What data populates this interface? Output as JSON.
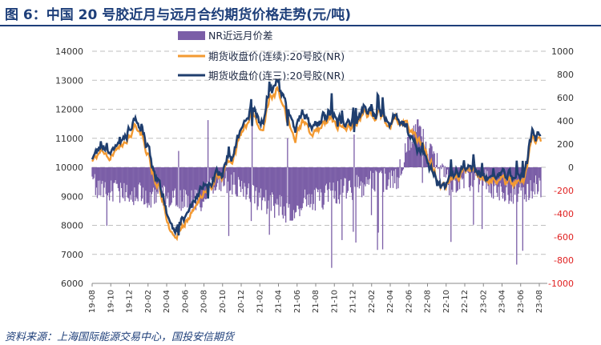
{
  "title": "图 6：中国 20 号胶近月与远月合约期货价格走势(元/吨)",
  "source": "资料来源：上海国际能源交易中心，国投安信期货",
  "chart_data": {
    "type": "line+area",
    "left_axis": {
      "min": 6000,
      "max": 14000,
      "ticks": [
        6000,
        7000,
        8000,
        9000,
        10000,
        11000,
        12000,
        13000,
        14000
      ]
    },
    "right_axis": {
      "min": -1000,
      "max": 1000,
      "ticks": [
        -1000,
        -800,
        -600,
        -400,
        -200,
        0,
        200,
        400,
        600,
        800,
        1000
      ]
    },
    "x_ticks": [
      "19-08",
      "19-10",
      "19-12",
      "20-02",
      "20-04",
      "20-06",
      "20-08",
      "20-10",
      "20-12",
      "21-02",
      "21-04",
      "21-06",
      "21-08",
      "21-10",
      "21-12",
      "22-02",
      "22-04",
      "22-06",
      "22-08",
      "22-10",
      "22-12",
      "23-02",
      "23-04",
      "23-06",
      "23-08"
    ],
    "legend": [
      "NR近远月价差",
      "期货收盘价(连续):20号胶(NR)",
      "期货收盘价(连三):20号胶(NR)"
    ],
    "colors": {
      "spread": "#7b5ea7",
      "continuous": "#f39a32",
      "third": "#1f3e6e",
      "right_axis_text": "#e02020"
    },
    "anchors_near": [
      [
        "19-08",
        10100
      ],
      [
        "19-09",
        10600
      ],
      [
        "19-10",
        10400
      ],
      [
        "19-11",
        10800
      ],
      [
        "19-12",
        11000
      ],
      [
        "19-12b",
        11300
      ],
      [
        "20-01",
        11200
      ],
      [
        "20-02",
        10000
      ],
      [
        "20-03",
        9300
      ],
      [
        "20-04",
        8000
      ],
      [
        "20-04b",
        7700
      ],
      [
        "20-05",
        8200
      ],
      [
        "20-06",
        8700
      ],
      [
        "20-07",
        9100
      ],
      [
        "20-08",
        9300
      ],
      [
        "20-09",
        9600
      ],
      [
        "20-10",
        10000
      ],
      [
        "20-10b",
        10600
      ],
      [
        "20-11",
        11600
      ],
      [
        "20-12",
        11700
      ],
      [
        "21-01",
        11000
      ],
      [
        "21-02",
        12400
      ],
      [
        "21-02b",
        12800
      ],
      [
        "21-03",
        11600
      ],
      [
        "21-04",
        11200
      ],
      [
        "21-05",
        11600
      ],
      [
        "21-06",
        10900
      ],
      [
        "21-07",
        11300
      ],
      [
        "21-08",
        11700
      ],
      [
        "21-09",
        11200
      ],
      [
        "21-10",
        11600
      ],
      [
        "21-11",
        11400
      ],
      [
        "21-12",
        11700
      ],
      [
        "22-01",
        11800
      ],
      [
        "22-02",
        11700
      ],
      [
        "22-03",
        11400
      ],
      [
        "22-04",
        11600
      ],
      [
        "22-05",
        11500
      ],
      [
        "22-06",
        11000
      ],
      [
        "22-07",
        10600
      ],
      [
        "22-08",
        10200
      ],
      [
        "22-09",
        9400
      ],
      [
        "22-10",
        9500
      ],
      [
        "22-11",
        9600
      ],
      [
        "22-12",
        9900
      ],
      [
        "23-01",
        9800
      ],
      [
        "23-02",
        9800
      ],
      [
        "23-03",
        9700
      ],
      [
        "23-04",
        9600
      ],
      [
        "23-05",
        9400
      ],
      [
        "23-06",
        9500
      ],
      [
        "23-07",
        9700
      ],
      [
        "23-08",
        10900
      ],
      [
        "23-09",
        10700
      ]
    ],
    "spread_anchors": [
      [
        "19-08",
        -150
      ],
      [
        "19-10",
        -200
      ],
      [
        "19-12",
        -220
      ],
      [
        "20-02",
        -250
      ],
      [
        "20-04",
        -260
      ],
      [
        "20-06",
        -280
      ],
      [
        "20-08",
        -300
      ],
      [
        "20-10",
        -100
      ],
      [
        "20-12",
        -150
      ],
      [
        "21-02",
        -250
      ],
      [
        "21-04",
        -320
      ],
      [
        "21-06",
        -380
      ],
      [
        "21-08",
        -280
      ],
      [
        "21-10",
        -250
      ],
      [
        "21-12",
        -200
      ],
      [
        "22-02",
        -150
      ],
      [
        "22-04",
        -120
      ],
      [
        "22-06",
        -100
      ],
      [
        "22-07",
        350
      ],
      [
        "22-08",
        80
      ],
      [
        "22-10",
        -180
      ],
      [
        "22-12",
        -100
      ],
      [
        "23-02",
        -120
      ],
      [
        "23-04",
        -250
      ],
      [
        "23-06",
        -200
      ],
      [
        "23-08",
        -150
      ]
    ]
  }
}
